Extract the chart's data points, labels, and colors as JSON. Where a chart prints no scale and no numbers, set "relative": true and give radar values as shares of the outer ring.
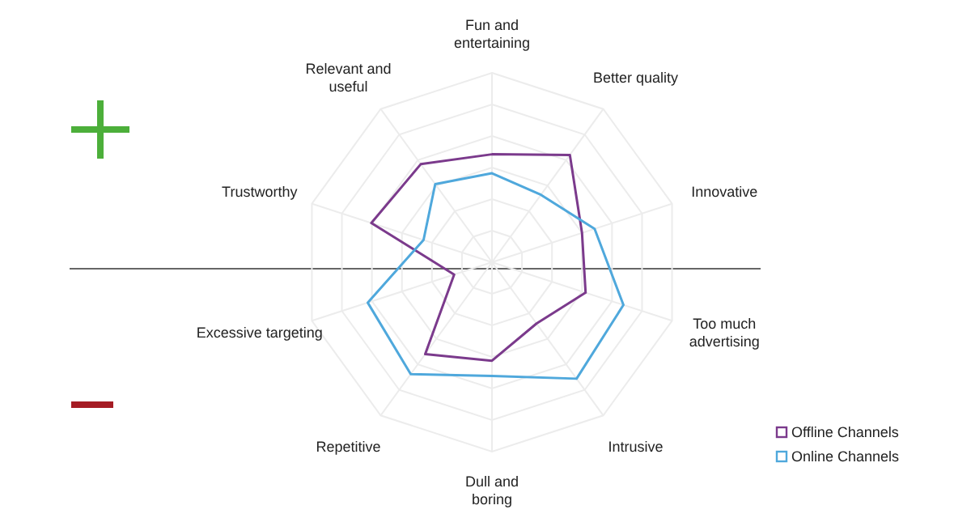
{
  "chart_data": {
    "type": "radar",
    "relative": true,
    "grid": true,
    "legend": "bottom right",
    "marker": "none",
    "line_style": "solid",
    "categories": [
      "Fun and entertaining",
      "Better quality",
      "Innovative",
      "Too much advertising",
      "Intrusive",
      "Dull and boring",
      "Repetitive",
      "Excessive targeting",
      "Trustworthy",
      "Relevant and useful"
    ],
    "series": [
      {
        "name": "Offline Channels",
        "color": "#7b3a8c",
        "values": [
          0.57,
          0.7,
          0.5,
          0.52,
          0.4,
          0.52,
          0.6,
          0.21,
          0.67,
          0.64
        ]
      },
      {
        "name": "Online Channels",
        "color": "#4fa8dc",
        "values": [
          0.47,
          0.44,
          0.57,
          0.73,
          0.76,
          0.6,
          0.73,
          0.69,
          0.38,
          0.51
        ]
      }
    ]
  }
}
